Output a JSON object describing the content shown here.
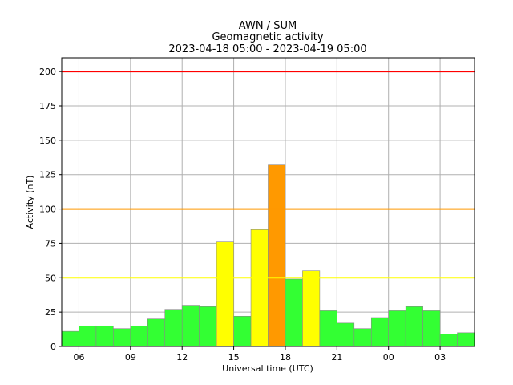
{
  "chart_data": {
    "type": "bar",
    "title_lines": [
      "AWN / SUM",
      "Geomagnetic activity",
      "2023-04-18 05:00 - 2023-04-19 05:00"
    ],
    "xlabel": "Universal time (UTC)",
    "ylabel": "Activity (nT)",
    "ylim": [
      0,
      210
    ],
    "yticks": [
      0,
      25,
      50,
      75,
      100,
      125,
      150,
      175,
      200
    ],
    "xticks": [
      {
        "hour_offset": 1,
        "label": "06"
      },
      {
        "hour_offset": 4,
        "label": "09"
      },
      {
        "hour_offset": 7,
        "label": "12"
      },
      {
        "hour_offset": 10,
        "label": "15"
      },
      {
        "hour_offset": 13,
        "label": "18"
      },
      {
        "hour_offset": 16,
        "label": "21"
      },
      {
        "hour_offset": 19,
        "label": "00"
      },
      {
        "hour_offset": 22,
        "label": "03"
      }
    ],
    "grid": true,
    "bins": [
      {
        "start": "05:00",
        "value": 11,
        "level": "green"
      },
      {
        "start": "06:00",
        "value": 15,
        "level": "green"
      },
      {
        "start": "07:00",
        "value": 15,
        "level": "green"
      },
      {
        "start": "08:00",
        "value": 13,
        "level": "green"
      },
      {
        "start": "09:00",
        "value": 15,
        "level": "green"
      },
      {
        "start": "10:00",
        "value": 20,
        "level": "green"
      },
      {
        "start": "11:00",
        "value": 27,
        "level": "green"
      },
      {
        "start": "12:00",
        "value": 30,
        "level": "green"
      },
      {
        "start": "13:00",
        "value": 29,
        "level": "green"
      },
      {
        "start": "14:00",
        "value": 76,
        "level": "yellow"
      },
      {
        "start": "15:00",
        "value": 22,
        "level": "green"
      },
      {
        "start": "16:00",
        "value": 85,
        "level": "yellow"
      },
      {
        "start": "17:00",
        "value": 132,
        "level": "orange"
      },
      {
        "start": "18:00",
        "value": 49,
        "level": "green"
      },
      {
        "start": "19:00",
        "value": 55,
        "level": "yellow"
      },
      {
        "start": "20:00",
        "value": 26,
        "level": "green"
      },
      {
        "start": "21:00",
        "value": 17,
        "level": "green"
      },
      {
        "start": "22:00",
        "value": 13,
        "level": "green"
      },
      {
        "start": "23:00",
        "value": 21,
        "level": "green"
      },
      {
        "start": "00:00",
        "value": 26,
        "level": "green"
      },
      {
        "start": "01:00",
        "value": 29,
        "level": "green"
      },
      {
        "start": "02:00",
        "value": 26,
        "level": "green"
      },
      {
        "start": "03:00",
        "value": 9,
        "level": "green"
      },
      {
        "start": "04:00",
        "value": 10,
        "level": "green"
      }
    ],
    "thresholds": [
      {
        "value": 50,
        "color": "#ffff00"
      },
      {
        "value": 100,
        "color": "#ff9900"
      },
      {
        "value": 200,
        "color": "#ff0000"
      }
    ],
    "level_colors": {
      "green": "#33ff33",
      "yellow": "#ffff00",
      "orange": "#ff9900"
    }
  }
}
